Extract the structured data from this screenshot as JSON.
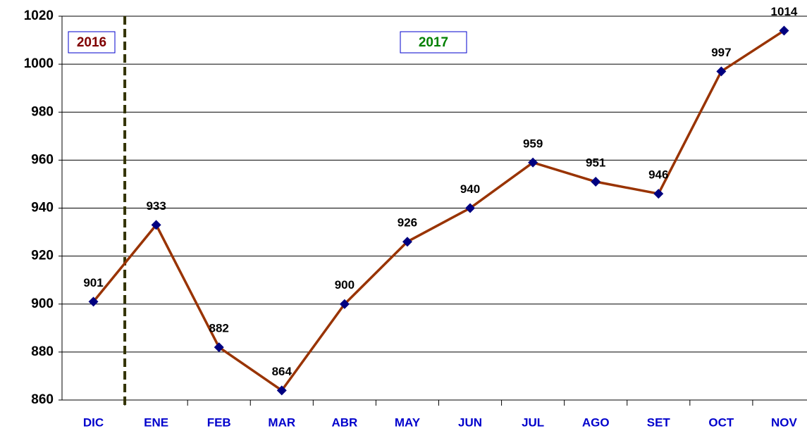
{
  "chart_data": {
    "type": "line",
    "categories": [
      "DIC",
      "ENE",
      "FEB",
      "MAR",
      "ABR",
      "MAY",
      "JUN",
      "JUL",
      "AGO",
      "SET",
      "OCT",
      "NOV"
    ],
    "values": [
      901,
      933,
      882,
      864,
      900,
      926,
      940,
      959,
      951,
      946,
      997,
      1014
    ],
    "color": "#993300",
    "marker_color": "#000080",
    "ylim": [
      860,
      1020
    ],
    "yticks": [
      860,
      880,
      900,
      920,
      940,
      960,
      980,
      1000,
      1020
    ],
    "grid": true,
    "annotations": [
      "2016",
      "2017"
    ]
  }
}
